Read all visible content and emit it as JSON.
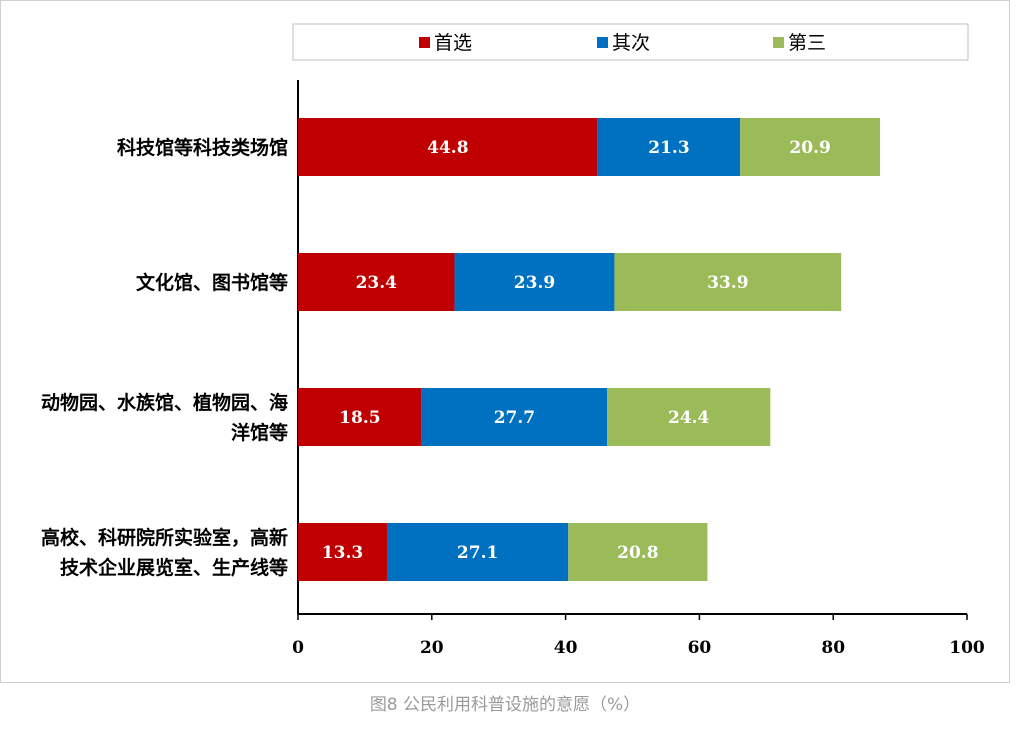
{
  "caption": "图8 公民利用科普设施的意愿（%）",
  "chart_data": {
    "type": "bar",
    "orientation": "horizontal",
    "stacked": true,
    "title": "",
    "xlabel": "",
    "ylabel": "",
    "xlim": [
      0,
      100
    ],
    "xticks": [
      0,
      20,
      40,
      60,
      80,
      100
    ],
    "grid": false,
    "legend_position": "top",
    "categories": [
      [
        "科技馆等科技类场馆"
      ],
      [
        "文化馆、图书馆等"
      ],
      [
        "动物园、水族馆、植物园、海",
        "洋馆等"
      ],
      [
        "高校、科研院所实验室，高新",
        "技术企业展览室、生产线等"
      ]
    ],
    "series": [
      {
        "name": "首选",
        "color": "#c00000",
        "values": [
          44.8,
          23.4,
          18.5,
          13.3
        ]
      },
      {
        "name": "其次",
        "color": "#0070c0",
        "values": [
          21.3,
          23.9,
          27.7,
          27.1
        ]
      },
      {
        "name": "第三",
        "color": "#9bbb59",
        "values": [
          20.9,
          33.9,
          24.4,
          20.8
        ]
      }
    ]
  }
}
